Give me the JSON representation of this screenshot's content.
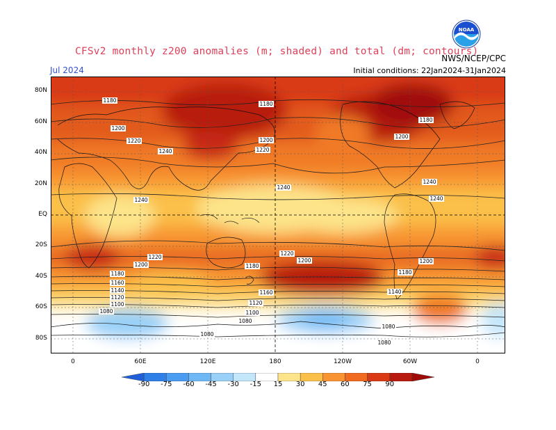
{
  "title": "CFSv2 monthly z200 anomalies (m; shaded) and total (dm; contours)",
  "month": "Jul 2024",
  "agency": "NWS/NCEP/CPC",
  "initial_conditions": "Initial conditions: 22Jan2024-31Jan2024",
  "logo_text": "NOAA",
  "lat_labels": [
    "80N",
    "60N",
    "40N",
    "20N",
    "EQ",
    "20S",
    "40S",
    "60S",
    "80S"
  ],
  "lon_labels": [
    "0",
    "60E",
    "120E",
    "180",
    "120W",
    "60W",
    "0"
  ],
  "colorbar": {
    "labels": [
      "-90",
      "-75",
      "-60",
      "-45",
      "-30",
      "-15",
      "15",
      "30",
      "45",
      "60",
      "75",
      "90"
    ],
    "colors": [
      "#1f5fd8",
      "#2e7fe8",
      "#4a9cf0",
      "#6fb8f5",
      "#98d0f8",
      "#c4e6fb",
      "#ffffff",
      "#fde48a",
      "#fbc04a",
      "#f89532",
      "#f06a20",
      "#d93a15",
      "#b81a10",
      "#a00a08"
    ]
  },
  "contour_labels": [
    "1180",
    "1180",
    "1180",
    "1200",
    "1200",
    "1200",
    "1220",
    "1220",
    "1240",
    "1240",
    "1240",
    "1240",
    "1240",
    "1220",
    "1220",
    "1200",
    "1200",
    "1200",
    "1180",
    "1180",
    "1180",
    "1160",
    "1160",
    "1140",
    "1140",
    "1120",
    "1120",
    "1100",
    "1100",
    "1080",
    "1080",
    "1080",
    "1080",
    "1080"
  ]
}
